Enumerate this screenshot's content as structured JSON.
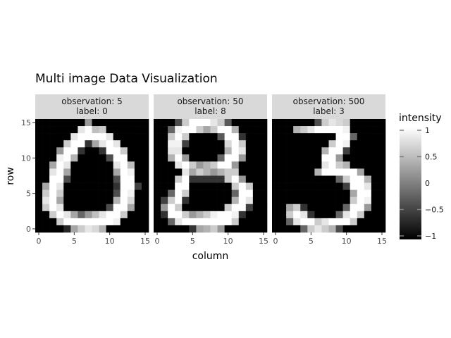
{
  "chart_data": {
    "type": "heatmap",
    "title": "Multi image Data Visualization",
    "xlabel": "column",
    "ylabel": "row",
    "xlim": [
      -0.5,
      15.5
    ],
    "ylim": [
      -0.5,
      15.5
    ],
    "x_ticks": [
      0,
      5,
      10,
      15
    ],
    "y_ticks": [
      0,
      5,
      10,
      15
    ],
    "grid": true,
    "legend": {
      "title": "intensity",
      "placement": "right",
      "range": [
        -1,
        1
      ],
      "ticks": [
        1,
        0.5,
        0,
        -0.5,
        -1
      ],
      "tick_labels": [
        "1",
        "0.5",
        "0",
        "−0.5",
        "−1"
      ],
      "low_color": "#000000",
      "high_color": "#ffffff"
    },
    "facets": [
      {
        "strip_line1": "observation: 5",
        "strip_line2": "label: 0",
        "rows": [
          "-1,-1,-1,-1,-1,-1,-1,0.2,-1,-1,-1,-1,-1,-1,-1,-1",
          "-1,-1,-1,-1,-1,-1,0.8,1,0.5,0.6,-1,-1,-1,-1,-1,-1",
          "-1,-1,-1,-1,-1,0.8,1,1,1,1,0.8,-1,-1,-1,-1,-1",
          "-1,-1,-1,-1,0.6,1,1,-0.6,0.3,0.8,1,0.8,-1,-1,-1,-1",
          "-1,-1,-1,0.2,1,1,-0.6,-1,-1,-0.6,1,1,0.6,-1,-1,-1",
          "-1,-1,-1,0.9,1,0.4,-1,-1,-1,-1,-0.4,1,1,-1,-1,-1",
          "-1,-1,0.3,1,0.8,-1,-1,-1,-1,-1,-1,0.8,1,0.5,-1,-1",
          "-1,-1,0.8,1,0.3,-1,-1,-1,-1,-1,-1,0.3,1,0.9,-1,-1",
          "-1,-1,1,1,-0.4,-1,-1,-1,-1,-1,-1,-0.4,1,1,-1,-1",
          "-1,0.3,1,0.8,-1,-1,-1,-1,-1,-1,-1,-0.6,1,1,-0.5,-1",
          "-1,0.6,1,0.6,-1,-1,-1,-1,-1,-1,-1,-0.4,1,0.9,-1,-1",
          "-1,0.8,1,0.3,-1,-1,-1,-1,-1,-1,-1,0.4,1,0.7,-1,-1",
          "-1,0.6,1,0.8,-1,-1,-1,-1,-1,-1,-0.4,1,1,0.3,-1,-1",
          "-1,-1,0.6,1,0.8,0.3,-0.2,0.2,0.5,0.8,1,1,0.6,-1,-1,-1",
          "-1,-1,-1,0.6,1,1,1,1,1,1,1,0.9,-1,-1,-1,-1",
          "-1,-1,-1,-1,-0.7,0.3,0.6,0.8,0.7,0.4,-1,-1,-1,-1,-1,-1"
        ]
      },
      {
        "strip_line1": "observation: 50",
        "strip_line2": "label: 8",
        "rows": [
          "-1,-1,-1,-0.4,0.6,1,1,1,0.8,0.6,-0.3,-1,-1,-1,-1,-1",
          "-1,-1,-0.2,0.9,1,1,0.6,0.3,0.6,1,1,0.4,-1,-1,-1,-1",
          "-1,-1,0.6,1,0.6,-1,-1,-1,-1,-0.3,1,1,-0.6,-1,-1,-1",
          "-1,-1,0.9,0.9,-0.5,-1,-1,-1,-1,-1,0.7,1,0.6,-1,-1,-1",
          "-1,-1,0.8,0.8,-1,-1,-1,-1,-1,-1,0.4,1,0.8,-1,-1,-1",
          "-1,-1,0.4,1,0.2,-1,-1,-1,-1,-0.2,1,1,0.2,-1,-1,-1",
          "-1,-1,-1,0.8,1,0.6,0.2,0.4,0.6,1,1,0.2,-1,-1,-1,-1",
          "-1,-1,-1,-1,0.8,0.3,0.6,0.4,0.2,0.4,0.6,0.6,-1,-1,-1,-1",
          "-1,-1,-1,0.6,1,-0.6,-0.6,-0.6,-0.6,-0.6,0.6,1,0.2,-1,-1,-1",
          "-1,-1,-1,1,1,-1,-1,-1,-1,-1,-1,0.6,1,0.6,-1,-1",
          "-1,-1,-0.2,1,0.6,-1,-1,-1,-1,-1,-1,-0.2,1,1,-1,-1",
          "-1,-0.5,0.6,1,-0.6,-1,-1,-1,-1,-1,-1,0.4,1,0.8,-1,-1",
          "-1,0.2,1,0.6,-1,-1,-1,-1,-1,-1,0.6,1,1,-0.5,-1,-1",
          "-1,-0.6,1,1,0.6,0.2,0.4,0.6,0.9,1,1,0.9,-0.6,-1,-1,-1",
          "-1,-1,-0.2,0.8,1,1,1,1,1,1,1,0.6,-1,-1,-1,-1",
          "-1,-1,-1,-1,-1,-0.6,0.3,0.4,0.6,0.2,-1,-1,-1,-1,-1,-1"
        ]
      },
      {
        "strip_line1": "observation: 500",
        "strip_line2": "label: 3",
        "rows": [
          "-1,-1,-1,-1,-1,-1,-0.4,0.6,0.8,0.7,0.6,-1,-1,-1,-1,-1",
          "-1,-1,-1,0.4,0.6,0.8,1,1,1,1,0.9,-1,-1,-1,-1,-1",
          "-1,-1,-1,-1,-1,-1,-1,-1,-1,1,1,-0.2,-1,-1,-1,-1",
          "-1,-1,-1,-1,-1,-1,-1,-1,0.6,1,0.9,-1,-1,-1,-1,-1",
          "-1,-1,-1,-1,-1,-1,-1,0.4,1,1,-0.5,-1,-1,-1,-1,-1",
          "-1,-1,-1,-1,-1,-1,-1,1,1,0.2,-1,-1,-1,-1,-1,-1",
          "-1,-1,-1,-1,-1,-1,-1,0.8,1,0.6,0.4,-1,-1,-1,-1,-1",
          "-1,-1,-1,-1,-1,-1,0.4,1,1,1,1,1,0.3,-1,-1,-1",
          "-1,-1,-1,-1,-1,-1,-1,-1,-1,-0.2,0.6,1,1,0.4,-1,-1",
          "-1,-1,-1,-1,-1,-1,-1,-1,-1,-1,-0.5,1,1,0.8,-1,-1",
          "-1,-1,-1,-1,-1,-1,-1,-1,-1,-1,-1,0.3,1,1,-1,-1",
          "-1,-1,-1,-1,-1,-1,-1,-1,-1,-1,-1,0.6,1,0.9,-1,-1",
          "-1,-1,0.3,0.6,-0.6,-1,-1,-1,-1,-1,-0.2,1,1,0.2,-1,-1",
          "-1,-1,0.6,1,0.8,-0.6,-1,-1,-1,-0.2,0.8,1,0.6,-1,-1,-1",
          "-1,-1,-0.2,0.8,1,1,0.6,0.8,1,1,1,0.6,-1,-1,-1,-1",
          "-1,-1,-1,-1,-0.2,0.6,0.8,0.6,0.4,-0.4,-1,-1,-1,-1,-1,-1"
        ]
      }
    ]
  }
}
